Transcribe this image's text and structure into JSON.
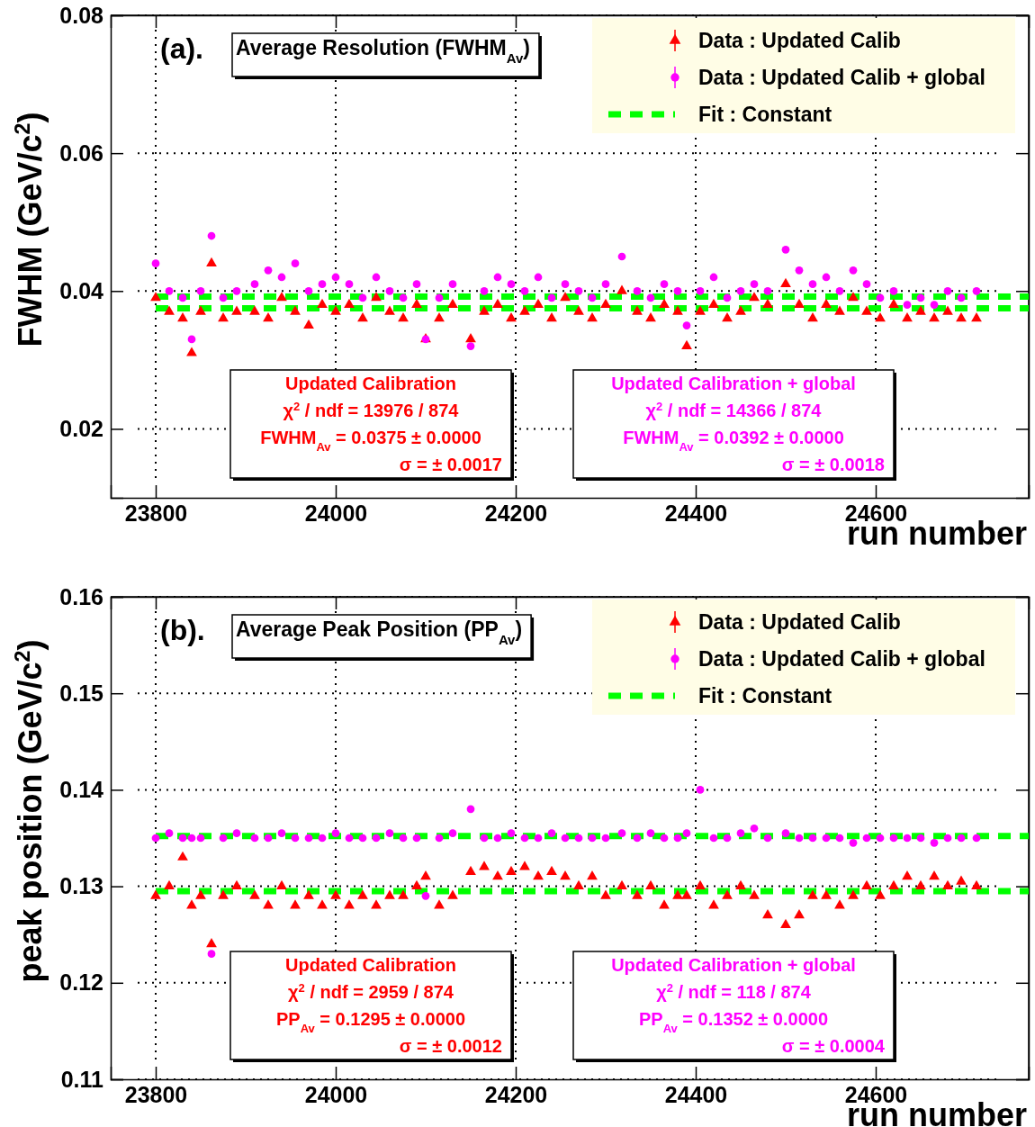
{
  "chart_data": [
    {
      "type": "scatter",
      "title": "Average Resolution (FWHM$_{Av}$)",
      "xlabel": "run number",
      "ylabel": "FWHM (GeV/c$^{2}$)",
      "xlim": [
        23750,
        24770
      ],
      "ylim": [
        0.01,
        0.08
      ],
      "xticks": [
        23800,
        24000,
        24200,
        24400,
        24600
      ],
      "yticks": [
        0.02,
        0.04,
        0.06,
        0.08
      ],
      "grid": true,
      "legend": "top right",
      "annotations": [
        "(a).",
        "Updated Calibration",
        "χ$^{2}$ / ndf  =  13976 / 874",
        "FWHM$_{Av}$    =    0.0375 ± 0.0000",
        "σ  =   ± 0.0017",
        "Updated Calibration + global",
        "χ$^{2}$ / ndf  =  14366 / 874",
        "FWHM$_{Av}$    =    0.0392 ± 0.0000",
        "σ  =   ± 0.0018"
      ],
      "series": [
        {
          "name": "Data : Updated Calib",
          "type": "scatter",
          "marker": "triangle",
          "color": "#ff0000",
          "x": [
            23800,
            23815,
            23830,
            23840,
            23850,
            23862,
            23875,
            23890,
            23910,
            23925,
            23940,
            23955,
            23970,
            23985,
            24000,
            24015,
            24030,
            24045,
            24060,
            24075,
            24090,
            24100,
            24115,
            24130,
            24150,
            24165,
            24180,
            24195,
            24210,
            24225,
            24240,
            24255,
            24270,
            24285,
            24300,
            24318,
            24335,
            24350,
            24365,
            24380,
            24390,
            24405,
            24420,
            24435,
            24450,
            24465,
            24480,
            24500,
            24515,
            24530,
            24545,
            24560,
            24575,
            24590,
            24605,
            24620,
            24635,
            24650,
            24665,
            24680,
            24695,
            24712
          ],
          "values": [
            0.039,
            0.037,
            0.036,
            0.031,
            0.037,
            0.044,
            0.036,
            0.037,
            0.037,
            0.036,
            0.039,
            0.037,
            0.035,
            0.038,
            0.037,
            0.038,
            0.036,
            0.039,
            0.037,
            0.036,
            0.038,
            0.033,
            0.036,
            0.038,
            0.033,
            0.037,
            0.038,
            0.036,
            0.037,
            0.038,
            0.036,
            0.039,
            0.037,
            0.036,
            0.038,
            0.04,
            0.037,
            0.036,
            0.038,
            0.037,
            0.032,
            0.037,
            0.038,
            0.036,
            0.037,
            0.039,
            0.038,
            0.041,
            0.038,
            0.036,
            0.038,
            0.037,
            0.039,
            0.037,
            0.036,
            0.038,
            0.036,
            0.037,
            0.036,
            0.037,
            0.036,
            0.036
          ]
        },
        {
          "name": "Data : Updated Calib + global",
          "type": "scatter",
          "marker": "circle",
          "color": "#ff00ff",
          "x": [
            23800,
            23815,
            23830,
            23840,
            23850,
            23862,
            23875,
            23890,
            23910,
            23925,
            23940,
            23955,
            23970,
            23985,
            24000,
            24015,
            24030,
            24045,
            24060,
            24075,
            24090,
            24100,
            24115,
            24130,
            24150,
            24165,
            24180,
            24195,
            24210,
            24225,
            24240,
            24255,
            24270,
            24285,
            24300,
            24318,
            24335,
            24350,
            24365,
            24380,
            24390,
            24405,
            24420,
            24435,
            24450,
            24465,
            24480,
            24500,
            24515,
            24530,
            24545,
            24560,
            24575,
            24590,
            24605,
            24620,
            24635,
            24650,
            24665,
            24680,
            24695,
            24712
          ],
          "values": [
            0.044,
            0.04,
            0.039,
            0.033,
            0.04,
            0.048,
            0.039,
            0.04,
            0.041,
            0.043,
            0.042,
            0.044,
            0.04,
            0.041,
            0.042,
            0.041,
            0.039,
            0.042,
            0.04,
            0.039,
            0.041,
            0.033,
            0.039,
            0.041,
            0.032,
            0.04,
            0.042,
            0.041,
            0.04,
            0.042,
            0.039,
            0.041,
            0.04,
            0.039,
            0.041,
            0.045,
            0.04,
            0.039,
            0.041,
            0.04,
            0.035,
            0.04,
            0.042,
            0.039,
            0.04,
            0.041,
            0.04,
            0.046,
            0.043,
            0.041,
            0.042,
            0.04,
            0.043,
            0.041,
            0.039,
            0.04,
            0.038,
            0.039,
            0.038,
            0.04,
            0.039,
            0.04
          ]
        },
        {
          "name": "Fit : Constant",
          "type": "line",
          "line_style": "dashed",
          "color": "#00ff00",
          "x": [
            23800,
            24770
          ],
          "values": [
            0.0375,
            0.0375
          ]
        },
        {
          "type": "line",
          "line_style": "dashed",
          "color": "#00ff00",
          "x": [
            23800,
            24770
          ],
          "values": [
            0.0392,
            0.0392
          ]
        }
      ]
    },
    {
      "type": "scatter",
      "title": "Average Peak Position (PP$_{Av}$)",
      "xlabel": "run number",
      "ylabel": "peak position (GeV/c$^{2}$)",
      "xlim": [
        23750,
        24770
      ],
      "ylim": [
        0.11,
        0.16
      ],
      "xticks": [
        23800,
        24000,
        24200,
        24400,
        24600
      ],
      "yticks": [
        0.11,
        0.12,
        0.13,
        0.14,
        0.15,
        0.16
      ],
      "grid": true,
      "legend": "top right",
      "annotations": [
        "(b).",
        "Updated Calibration",
        "χ$^{2}$ / ndf  =  2959 / 874",
        "PP$_{Av}$    =    0.1295 ± 0.0000",
        "σ  =   ± 0.0012",
        "Updated Calibration + global",
        "χ$^{2}$ / ndf  =  118 / 874",
        "PP$_{Av}$    =    0.1352 ± 0.0000",
        "σ  =   ± 0.0004"
      ],
      "series": [
        {
          "name": "Data : Updated Calib",
          "type": "scatter",
          "marker": "triangle",
          "color": "#ff0000",
          "x": [
            23800,
            23815,
            23830,
            23840,
            23850,
            23862,
            23875,
            23890,
            23910,
            23925,
            23940,
            23955,
            23970,
            23985,
            24000,
            24015,
            24030,
            24045,
            24060,
            24075,
            24090,
            24100,
            24115,
            24130,
            24150,
            24165,
            24180,
            24195,
            24210,
            24225,
            24240,
            24255,
            24270,
            24285,
            24300,
            24318,
            24335,
            24350,
            24365,
            24380,
            24390,
            24405,
            24420,
            24435,
            24450,
            24465,
            24480,
            24500,
            24515,
            24530,
            24545,
            24560,
            24575,
            24590,
            24605,
            24620,
            24635,
            24650,
            24665,
            24680,
            24695,
            24712
          ],
          "values": [
            0.129,
            0.13,
            0.133,
            0.128,
            0.129,
            0.124,
            0.129,
            0.13,
            0.129,
            0.128,
            0.13,
            0.128,
            0.129,
            0.128,
            0.129,
            0.128,
            0.129,
            0.128,
            0.129,
            0.129,
            0.13,
            0.131,
            0.128,
            0.129,
            0.1315,
            0.132,
            0.131,
            0.1315,
            0.132,
            0.131,
            0.1315,
            0.131,
            0.13,
            0.131,
            0.129,
            0.13,
            0.129,
            0.13,
            0.128,
            0.129,
            0.129,
            0.13,
            0.128,
            0.129,
            0.13,
            0.129,
            0.127,
            0.126,
            0.127,
            0.129,
            0.129,
            0.128,
            0.129,
            0.13,
            0.129,
            0.13,
            0.131,
            0.13,
            0.131,
            0.13,
            0.1305,
            0.13
          ]
        },
        {
          "name": "Data : Updated Calib + global",
          "type": "scatter",
          "marker": "circle",
          "color": "#ff00ff",
          "x": [
            23800,
            23815,
            23830,
            23840,
            23850,
            23862,
            23875,
            23890,
            23910,
            23925,
            23940,
            23955,
            23970,
            23985,
            24000,
            24015,
            24030,
            24045,
            24060,
            24075,
            24090,
            24100,
            24115,
            24130,
            24150,
            24165,
            24180,
            24195,
            24210,
            24225,
            24240,
            24255,
            24270,
            24285,
            24300,
            24318,
            24335,
            24350,
            24365,
            24380,
            24390,
            24405,
            24420,
            24435,
            24450,
            24465,
            24480,
            24500,
            24515,
            24530,
            24545,
            24560,
            24575,
            24590,
            24605,
            24620,
            24635,
            24650,
            24665,
            24680,
            24695,
            24712
          ],
          "values": [
            0.135,
            0.1355,
            0.135,
            0.135,
            0.135,
            0.123,
            0.135,
            0.1355,
            0.135,
            0.135,
            0.1355,
            0.135,
            0.135,
            0.135,
            0.1355,
            0.135,
            0.135,
            0.135,
            0.1355,
            0.135,
            0.135,
            0.129,
            0.135,
            0.1355,
            0.138,
            0.135,
            0.135,
            0.1355,
            0.135,
            0.135,
            0.1355,
            0.135,
            0.135,
            0.135,
            0.135,
            0.1355,
            0.135,
            0.1355,
            0.135,
            0.135,
            0.1355,
            0.14,
            0.135,
            0.135,
            0.1355,
            0.136,
            0.135,
            0.1355,
            0.135,
            0.135,
            0.135,
            0.135,
            0.1345,
            0.135,
            0.135,
            0.135,
            0.135,
            0.135,
            0.1345,
            0.135,
            0.135,
            0.135
          ]
        },
        {
          "name": "Fit : Constant",
          "type": "line",
          "line_style": "dashed",
          "color": "#00ff00",
          "x": [
            23800,
            24770
          ],
          "values": [
            0.1295,
            0.1295
          ]
        },
        {
          "type": "line",
          "line_style": "dashed",
          "color": "#00ff00",
          "x": [
            23800,
            24770
          ],
          "values": [
            0.1352,
            0.1352
          ]
        }
      ]
    }
  ]
}
